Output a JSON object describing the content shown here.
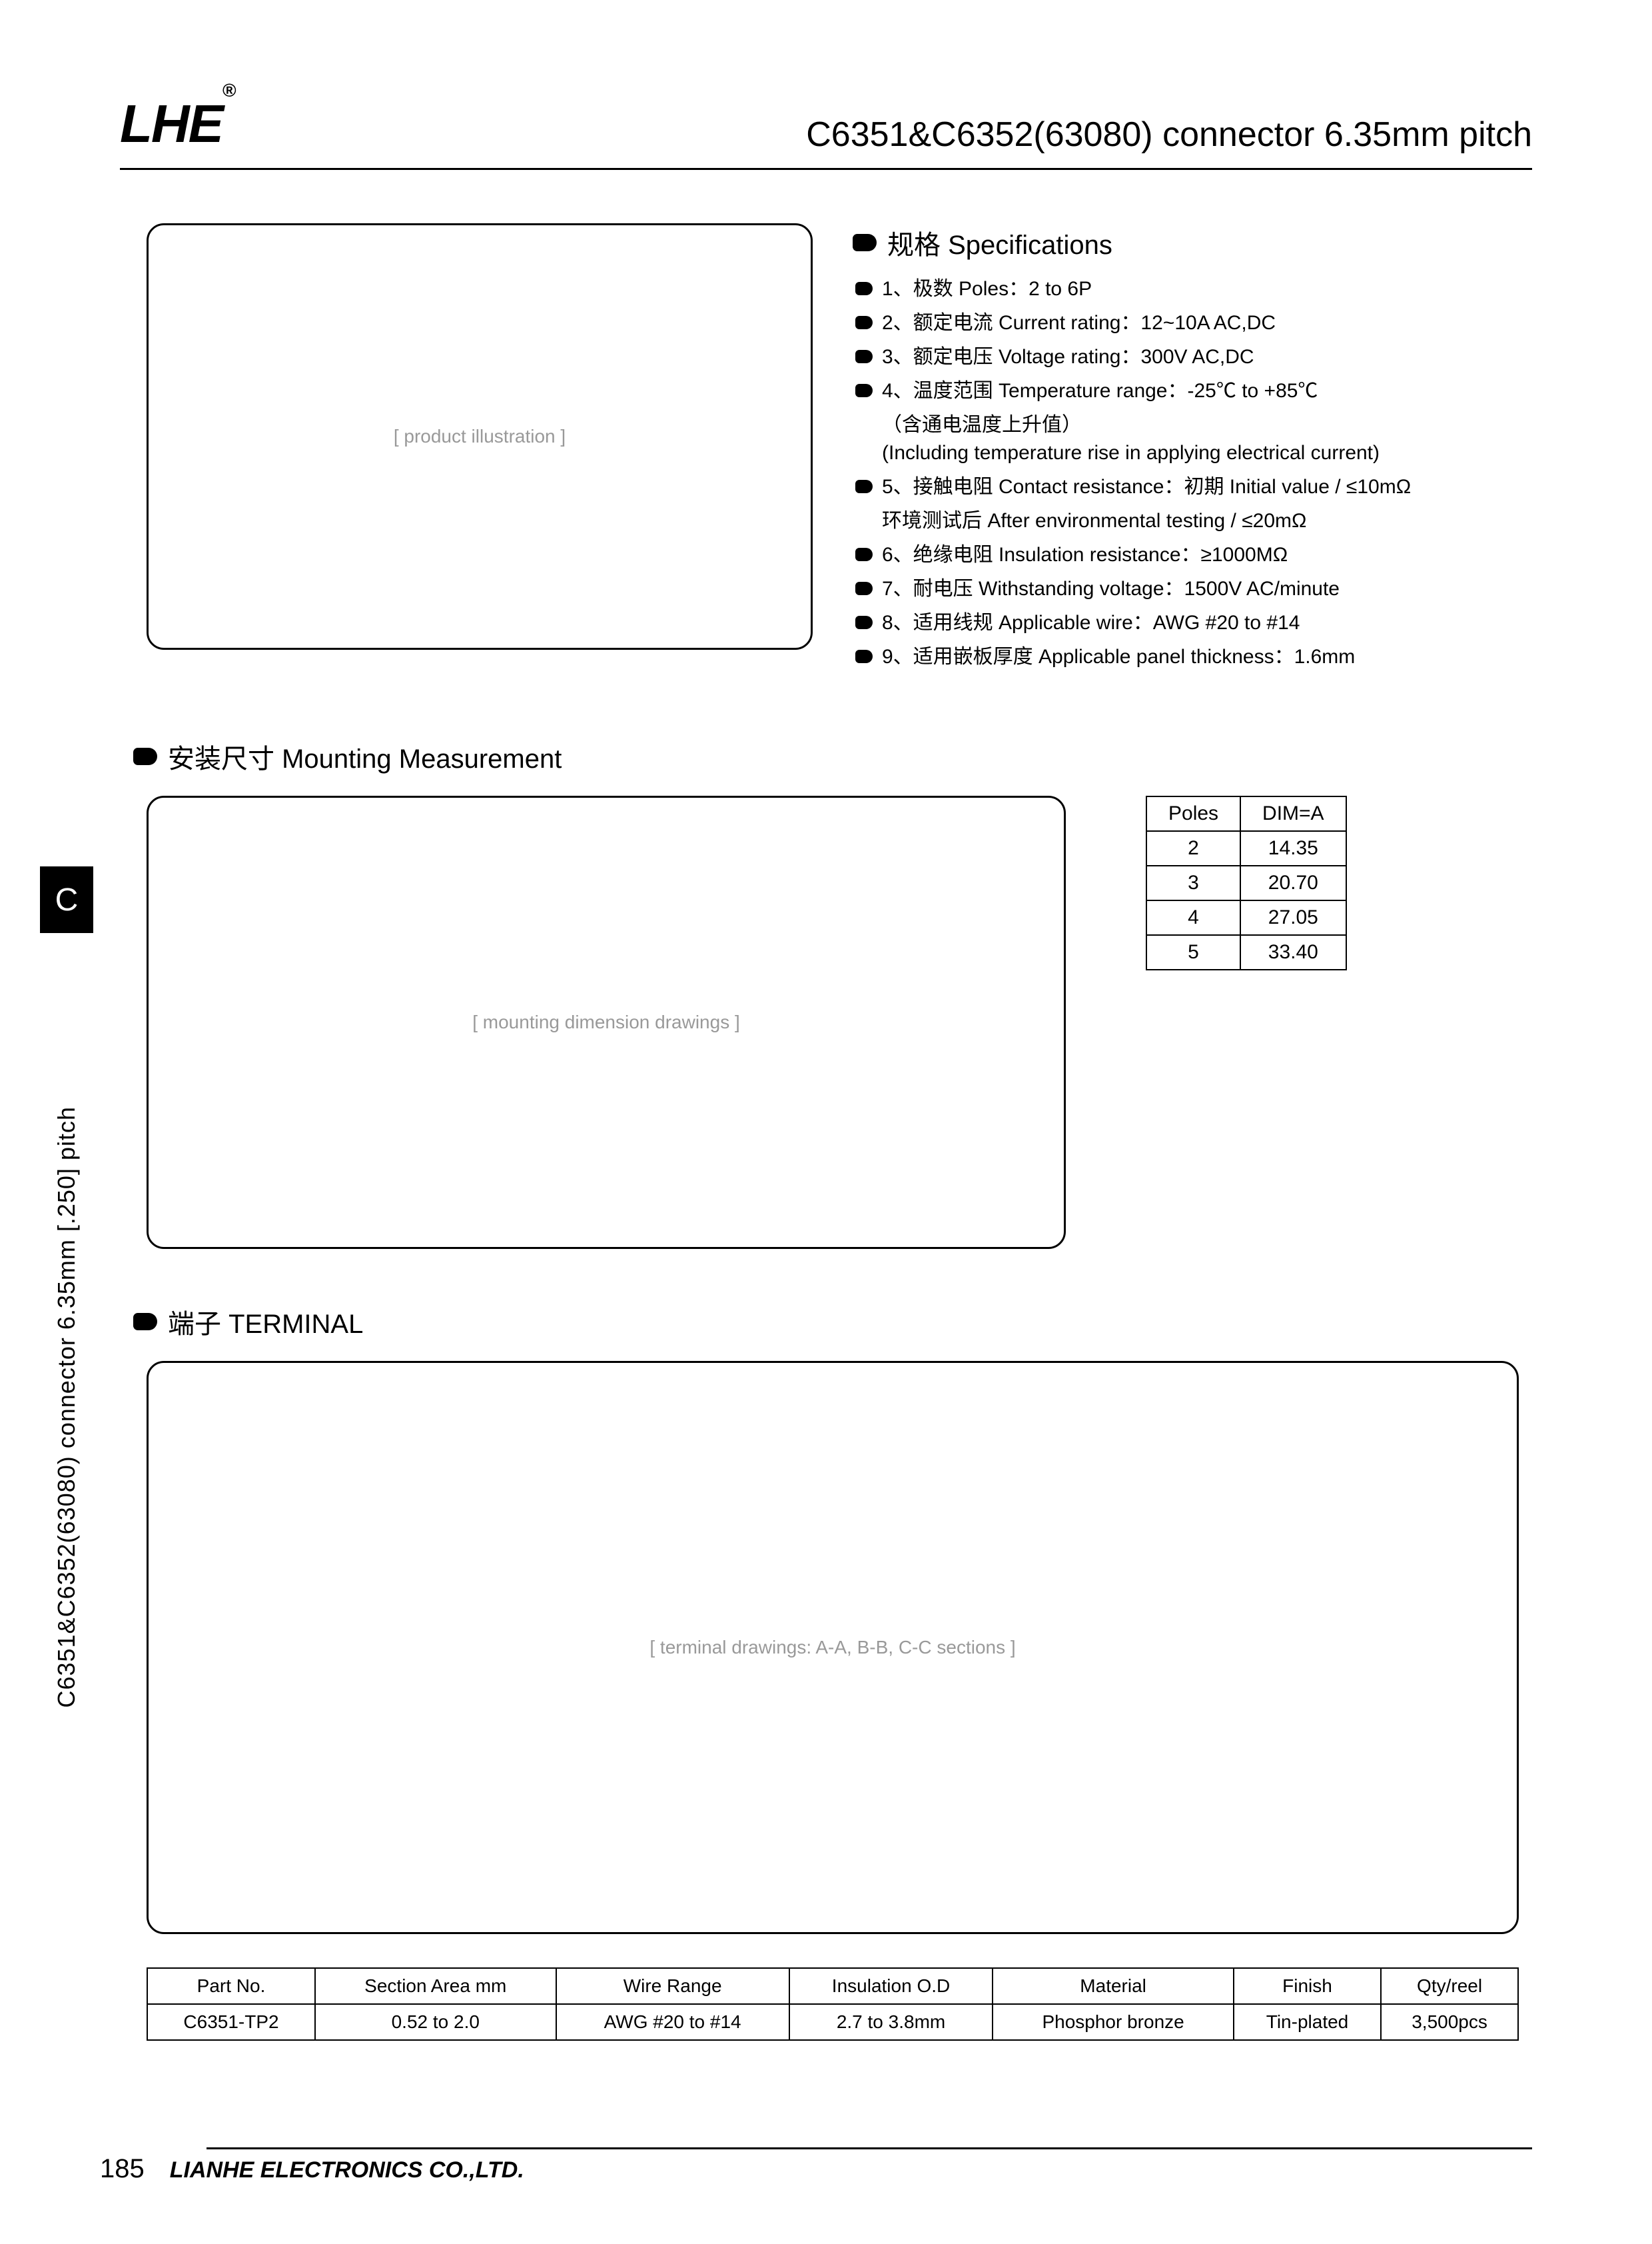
{
  "header": {
    "logo": "LHE",
    "logo_sup": "®",
    "title": "C6351&C6352(63080) connector 6.35mm pitch"
  },
  "side_tab": {
    "letter": "C",
    "text": "C6351&C6352(63080) connector 6.35mm [.250] pitch"
  },
  "specs": {
    "title": "规格 Specifications",
    "items": [
      {
        "text": "1、极数 Poles：2 to 6P"
      },
      {
        "text": "2、额定电流 Current rating：12~10A  AC,DC"
      },
      {
        "text": "3、额定电压 Voltage rating：300V  AC,DC"
      },
      {
        "text": "4、温度范围 Temperature range：-25℃ to +85℃",
        "sub": [
          "（含通电温度上升值）",
          "(Including temperature rise in applying electrical current)"
        ]
      },
      {
        "text": "5、接触电阻 Contact resistance：初期 Initial value / ≤10mΩ",
        "sub": [
          "环境测试后 After environmental testing / ≤20mΩ"
        ]
      },
      {
        "text": "6、绝缘电阻 Insulation resistance：≥1000MΩ"
      },
      {
        "text": "7、耐电压 Withstanding voltage：1500V  AC/minute"
      },
      {
        "text": "8、适用线规 Applicable wire：AWG #20 to #14"
      },
      {
        "text": "9、适用嵌板厚度 Applicable panel thickness：1.6mm"
      }
    ]
  },
  "mounting": {
    "title": "安装尺寸 Mounting Measurement",
    "drawing_placeholder": "[ mounting dimension drawings ]",
    "table": {
      "headers": [
        "Poles",
        "DIM=A"
      ],
      "rows": [
        [
          "2",
          "14.35"
        ],
        [
          "3",
          "20.70"
        ],
        [
          "4",
          "27.05"
        ],
        [
          "5",
          "33.40"
        ]
      ]
    }
  },
  "terminal": {
    "title": "端子 TERMINAL",
    "drawing_placeholder": "[ terminal drawings: A-A, B-B, C-C sections ]"
  },
  "part_table": {
    "headers": [
      "Part No.",
      "Section Area mm",
      "Wire Range",
      "Insulation O.D",
      "Material",
      "Finish",
      "Qty/reel"
    ],
    "rows": [
      [
        "C6351-TP2",
        "0.52 to 2.0",
        "AWG #20 to #14",
        "2.7 to 3.8mm",
        "Phosphor bronze",
        "Tin-plated",
        "3,500pcs"
      ]
    ]
  },
  "product_placeholder": "[ product illustration ]",
  "footer": {
    "page": "185",
    "company": "LIANHE ELECTRONICS CO.,LTD."
  },
  "style": {
    "background_color": "#ffffff",
    "text_color": "#000000",
    "border_color": "#000000",
    "title_fontsize": 52,
    "section_title_fontsize": 40,
    "body_fontsize": 30,
    "table_fontsize": 30,
    "logo_fontsize": 80
  }
}
